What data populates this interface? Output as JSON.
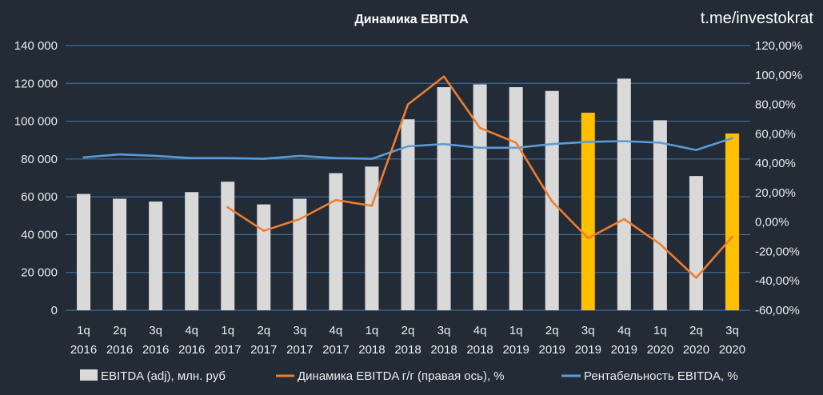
{
  "header": {
    "title": "Динамика EBITDA",
    "watermark": "t.me/investokrat"
  },
  "colors": {
    "background": "#222b36",
    "bar": "#d9d9d9",
    "bar_highlight": "#ffc000",
    "growth_line": "#ed7d31",
    "margin_line": "#5b9bd5",
    "grid": "#4a8ac4"
  },
  "chart_data": {
    "type": "bar",
    "title": "Динамика EBITDA",
    "categories": [
      [
        "1q",
        "2016"
      ],
      [
        "2q",
        "2016"
      ],
      [
        "3q",
        "2016"
      ],
      [
        "4q",
        "2016"
      ],
      [
        "1q",
        "2017"
      ],
      [
        "2q",
        "2017"
      ],
      [
        "3q",
        "2017"
      ],
      [
        "4q",
        "2017"
      ],
      [
        "1q",
        "2018"
      ],
      [
        "2q",
        "2018"
      ],
      [
        "3q",
        "2018"
      ],
      [
        "4q",
        "2018"
      ],
      [
        "1q",
        "2019"
      ],
      [
        "2q",
        "2019"
      ],
      [
        "3q",
        "2019"
      ],
      [
        "4q",
        "2019"
      ],
      [
        "1q",
        "2020"
      ],
      [
        "2q",
        "2020"
      ],
      [
        "3q",
        "2020"
      ]
    ],
    "y_left": {
      "min": 0,
      "max": 140000,
      "ticks": [
        "0",
        "20 000",
        "40 000",
        "60 000",
        "80 000",
        "100 000",
        "120 000",
        "140 000"
      ]
    },
    "y_right": {
      "min": -60,
      "max": 120,
      "ticks": [
        "-60,00%",
        "-40,00%",
        "-20,00%",
        "0,00%",
        "20,00%",
        "40,00%",
        "60,00%",
        "80,00%",
        "100,00%",
        "120,00%"
      ]
    },
    "grid": true,
    "legend_position": "bottom",
    "series": [
      {
        "name": "EBITDA (adj), млн. руб",
        "type": "bar",
        "axis": "left",
        "values": [
          61500,
          59000,
          57500,
          62500,
          68000,
          56000,
          59000,
          72500,
          76000,
          101000,
          118000,
          119500,
          118000,
          116000,
          104500,
          122500,
          100500,
          71000,
          93500
        ],
        "highlight": [
          false,
          false,
          false,
          false,
          false,
          false,
          false,
          false,
          false,
          false,
          false,
          false,
          false,
          false,
          true,
          false,
          false,
          false,
          true
        ]
      },
      {
        "name": "Динамика EBITDA г/г (правая ось), %",
        "type": "line",
        "axis": "right",
        "values": [
          null,
          null,
          null,
          null,
          10,
          -6,
          2,
          15,
          11,
          80,
          99,
          64,
          54,
          14,
          -11,
          2,
          -15,
          -38,
          -10
        ]
      },
      {
        "name": "Рентабельность EBITDA, %",
        "type": "line",
        "axis": "right",
        "values": [
          44,
          46,
          45,
          43.5,
          43.5,
          43,
          45,
          43.5,
          43,
          51.5,
          53,
          50.5,
          50.5,
          53,
          54.5,
          55,
          54,
          49,
          57
        ]
      }
    ]
  }
}
